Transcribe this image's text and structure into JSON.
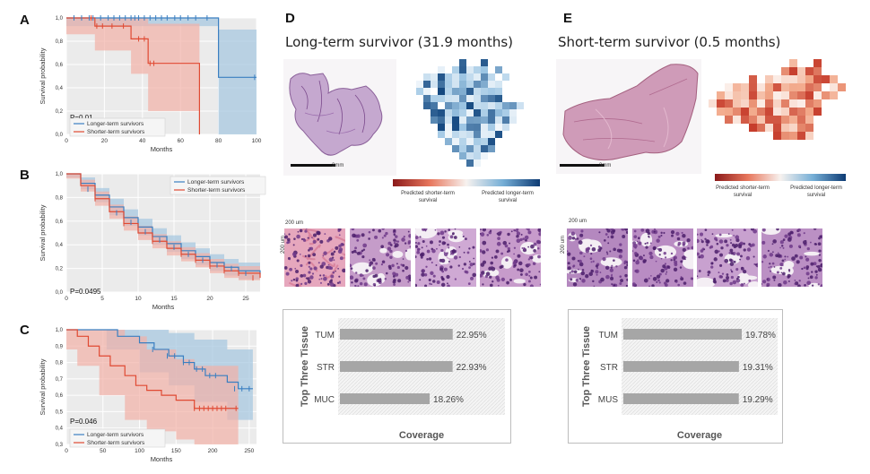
{
  "km_panels": [
    {
      "letter": "A",
      "pvalue": "P=0.01",
      "xlabel": "Months",
      "ylabel": "Survival probability",
      "xticks": [
        "0",
        "20",
        "40",
        "60",
        "80",
        "100"
      ],
      "yticks": [
        "0,0",
        "0,2",
        "0,4",
        "0,6",
        "0,8",
        "1,0"
      ],
      "legend": [
        "Longer-term survivors",
        "Shorter-term survivors"
      ]
    },
    {
      "letter": "B",
      "pvalue": "P=0.0495",
      "xlabel": "Months",
      "ylabel": "Survival probability",
      "xticks": [
        "0",
        "5",
        "10",
        "15",
        "20",
        "25"
      ],
      "yticks": [
        "0,0",
        "0,2",
        "0,4",
        "0,6",
        "0,8",
        "1,0"
      ],
      "legend": [
        "Longer-term survivors",
        "Shorter-term survivors"
      ]
    },
    {
      "letter": "C",
      "pvalue": "P=0.046",
      "xlabel": "Months",
      "ylabel": "Survival probability",
      "xticks": [
        "0",
        "50",
        "100",
        "150",
        "200",
        "250"
      ],
      "yticks": [
        "0,3",
        "0,4",
        "0,5",
        "0,6",
        "0,7",
        "0,8",
        "0,9",
        "1,0"
      ],
      "legend": [
        "Longer-term survivors",
        "Shorter-term survivors"
      ]
    }
  ],
  "colors": {
    "longer": "#3a7fc1",
    "shorter": "#e04a33",
    "longer_band": "#a8c8e0",
    "shorter_band": "#f2b1a6",
    "plot_bg": "#ebebeb",
    "bar": "#a6a6a6"
  },
  "panel_d": {
    "letter": "D",
    "title": "Long-term survivor (31.9 months)",
    "scale_label": "3mm",
    "micro_scale": "200 um",
    "colorbar_left": "Predicted shorter-term survival",
    "colorbar_right": "Predicted longer-term survival",
    "bar_axis_label": "Top Three Tissue",
    "bar_xlabel": "Coverage",
    "bars": [
      {
        "label": "TUM",
        "value": "22.95%"
      },
      {
        "label": "STR",
        "value": "22.93%"
      },
      {
        "label": "MUC",
        "value": "18.26%"
      }
    ]
  },
  "panel_e": {
    "letter": "E",
    "title": "Short-term survivor (0.5 months)",
    "scale_label": "3mm",
    "micro_scale": "200 um",
    "colorbar_left": "Predicted shorter-term survival",
    "colorbar_right": "Predicted longer-term survival",
    "bar_axis_label": "Top Three Tissue",
    "bar_xlabel": "Coverage",
    "bars": [
      {
        "label": "TUM",
        "value": "19.78%"
      },
      {
        "label": "STR",
        "value": "19.31%"
      },
      {
        "label": "MUS",
        "value": "19.29%"
      }
    ]
  },
  "chart_data": [
    {
      "type": "line",
      "panel": "A",
      "xlabel": "Months",
      "ylabel": "Survival probability",
      "xlim": [
        0,
        100
      ],
      "ylim": [
        0,
        1
      ],
      "series": [
        {
          "name": "Longer-term survivors",
          "x": [
            0,
            80,
            80,
            100
          ],
          "y": [
            1.0,
            1.0,
            0.49,
            0.49
          ]
        },
        {
          "name": "Shorter-term survivors",
          "x": [
            0,
            15,
            15,
            34,
            34,
            43,
            43,
            70,
            70
          ],
          "y": [
            1.0,
            1.0,
            0.93,
            0.93,
            0.82,
            0.82,
            0.61,
            0.61,
            0.0
          ]
        }
      ]
    },
    {
      "type": "line",
      "panel": "B",
      "xlabel": "Months",
      "ylabel": "Survival probability",
      "xlim": [
        0,
        27
      ],
      "ylim": [
        0,
        1
      ],
      "series": [
        {
          "name": "Longer-term survivors",
          "x": [
            0,
            2,
            4,
            6,
            8,
            10,
            12,
            14,
            16,
            18,
            20,
            22,
            24,
            27
          ],
          "y": [
            1.0,
            0.92,
            0.82,
            0.72,
            0.63,
            0.55,
            0.47,
            0.41,
            0.35,
            0.3,
            0.25,
            0.21,
            0.18,
            0.15
          ]
        },
        {
          "name": "Shorter-term survivors",
          "x": [
            0,
            2,
            4,
            6,
            8,
            10,
            12,
            14,
            16,
            18,
            20,
            22,
            24,
            27
          ],
          "y": [
            1.0,
            0.9,
            0.79,
            0.68,
            0.58,
            0.5,
            0.43,
            0.37,
            0.32,
            0.27,
            0.22,
            0.18,
            0.16,
            0.12
          ]
        }
      ]
    },
    {
      "type": "line",
      "panel": "C",
      "xlabel": "Months",
      "ylabel": "Survival probability",
      "xlim": [
        0,
        260
      ],
      "ylim": [
        0.3,
        1.0
      ],
      "series": [
        {
          "name": "Longer-term survivors",
          "x": [
            0,
            55,
            70,
            100,
            120,
            140,
            160,
            175,
            190,
            220,
            235,
            255
          ],
          "y": [
            1.0,
            1.0,
            0.96,
            0.92,
            0.88,
            0.84,
            0.8,
            0.76,
            0.72,
            0.68,
            0.64,
            0.64
          ]
        },
        {
          "name": "Shorter-term survivors",
          "x": [
            0,
            15,
            30,
            45,
            60,
            80,
            95,
            110,
            130,
            150,
            175,
            235
          ],
          "y": [
            1.0,
            0.96,
            0.9,
            0.84,
            0.78,
            0.72,
            0.66,
            0.63,
            0.6,
            0.57,
            0.52,
            0.52
          ]
        }
      ]
    },
    {
      "type": "bar",
      "panel": "D",
      "categories": [
        "TUM",
        "STR",
        "MUC"
      ],
      "values": [
        22.95,
        22.93,
        18.26
      ],
      "xlabel": "Coverage",
      "ylabel": "Top Three Tissue"
    },
    {
      "type": "bar",
      "panel": "E",
      "categories": [
        "TUM",
        "STR",
        "MUS"
      ],
      "values": [
        19.78,
        19.31,
        19.29
      ],
      "xlabel": "Coverage",
      "ylabel": "Top Three Tissue"
    }
  ]
}
